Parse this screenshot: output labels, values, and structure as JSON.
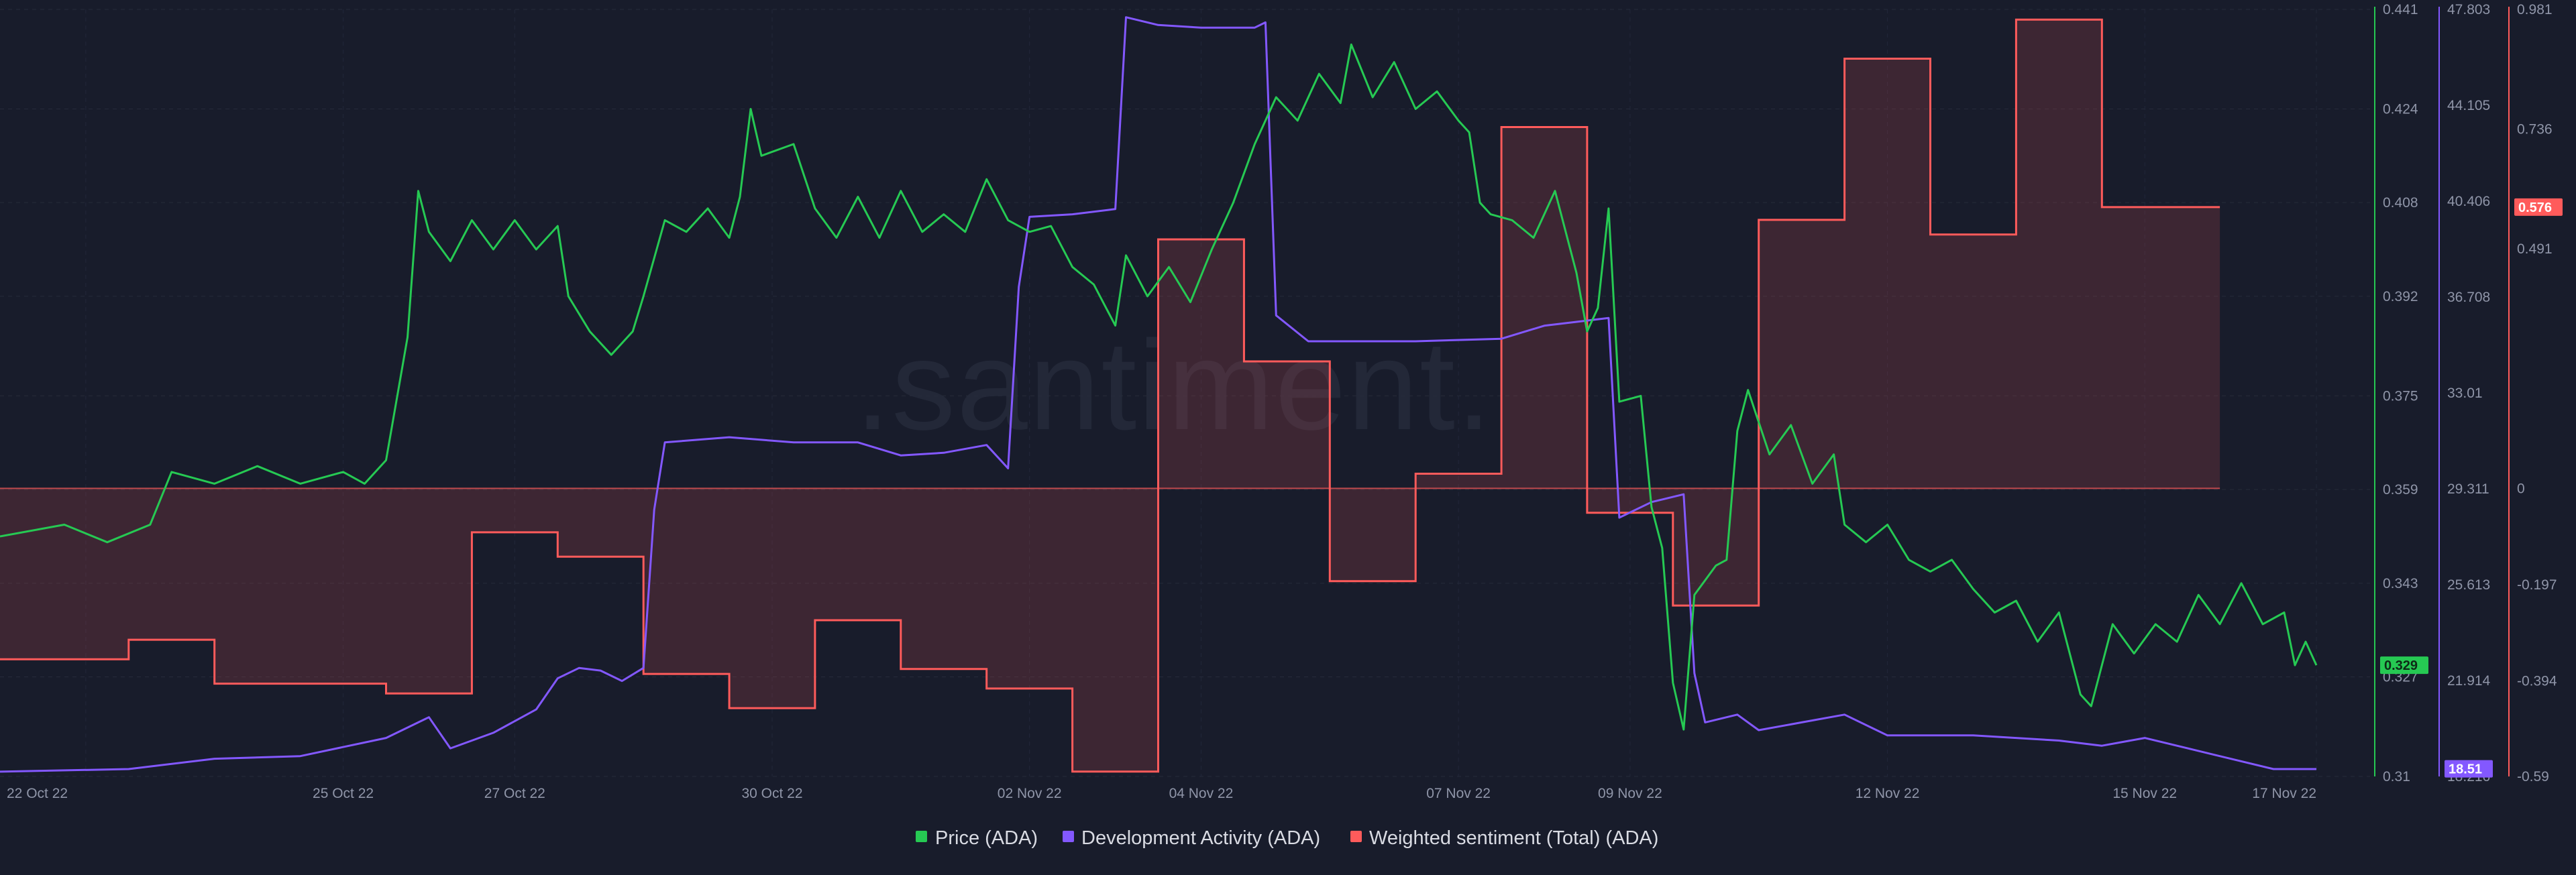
{
  "watermark": ".santiment.",
  "legend": [
    {
      "label": "Price (ADA)",
      "color": "#26c953"
    },
    {
      "label": "Development Activity (ADA)",
      "color": "#8358ff"
    },
    {
      "label": "Weighted sentiment (Total) (ADA)",
      "color": "#ff5b5b"
    }
  ],
  "chart_data": {
    "type": "line",
    "x_range": [
      "2022-10-21",
      "2022-11-17"
    ],
    "x_tick_labels": [
      "22 Oct 22",
      "25 Oct 22",
      "27 Oct 22",
      "30 Oct 22",
      "02 Nov 22",
      "04 Nov 22",
      "07 Nov 22",
      "09 Nov 22",
      "12 Nov 22",
      "15 Nov 22",
      "17 Nov 22"
    ],
    "x_tick_dates": [
      "2022-10-22",
      "2022-10-25",
      "2022-10-27",
      "2022-10-30",
      "2022-11-02",
      "2022-11-04",
      "2022-11-07",
      "2022-11-09",
      "2022-11-12",
      "2022-11-15",
      "2022-11-17"
    ],
    "grid": true,
    "legend_position": "bottom-center",
    "axes": [
      {
        "series": "Price (ADA)",
        "color": "#26c953",
        "range": [
          0.31,
          0.441
        ],
        "ticks": [
          "0.441",
          "0.424",
          "0.408",
          "0.392",
          "0.375",
          "0.359",
          "0.343",
          "0.327",
          "0.31"
        ],
        "current_value_label": "0.329"
      },
      {
        "series": "Development Activity (ADA)",
        "color": "#8358ff",
        "range": [
          18.216,
          47.803
        ],
        "ticks": [
          "47.803",
          "44.105",
          "40.406",
          "36.708",
          "33.01",
          "29.311",
          "25.613",
          "21.914",
          "18.216"
        ],
        "current_value_label": "18.51"
      },
      {
        "series": "Weighted sentiment (Total) (ADA)",
        "color": "#ff5b5b",
        "range": [
          -0.59,
          0.981
        ],
        "ticks": [
          "0.981",
          "0.736",
          "0.491",
          "0",
          "-0.197",
          "-0.394",
          "-0.59"
        ],
        "current_value_label": "0.576"
      }
    ],
    "series": [
      {
        "name": "Price (ADA)",
        "axis": 0,
        "style": "line",
        "points": [
          [
            "2022-10-21 00:00",
            0.351
          ],
          [
            "2022-10-21 18:00",
            0.353
          ],
          [
            "2022-10-22 06:00",
            0.35
          ],
          [
            "2022-10-22 18:00",
            0.353
          ],
          [
            "2022-10-23 00:00",
            0.362
          ],
          [
            "2022-10-23 12:00",
            0.36
          ],
          [
            "2022-10-24 00:00",
            0.363
          ],
          [
            "2022-10-24 12:00",
            0.36
          ],
          [
            "2022-10-25 00:00",
            0.362
          ],
          [
            "2022-10-25 06:00",
            0.36
          ],
          [
            "2022-10-25 12:00",
            0.364
          ],
          [
            "2022-10-25 18:00",
            0.385
          ],
          [
            "2022-10-25 21:00",
            0.41
          ],
          [
            "2022-10-26 00:00",
            0.403
          ],
          [
            "2022-10-26 06:00",
            0.398
          ],
          [
            "2022-10-26 12:00",
            0.405
          ],
          [
            "2022-10-26 18:00",
            0.4
          ],
          [
            "2022-10-27 00:00",
            0.405
          ],
          [
            "2022-10-27 06:00",
            0.4
          ],
          [
            "2022-10-27 12:00",
            0.404
          ],
          [
            "2022-10-27 15:00",
            0.392
          ],
          [
            "2022-10-27 21:00",
            0.386
          ],
          [
            "2022-10-28 03:00",
            0.382
          ],
          [
            "2022-10-28 09:00",
            0.386
          ],
          [
            "2022-10-28 12:00",
            0.392
          ],
          [
            "2022-10-28 18:00",
            0.405
          ],
          [
            "2022-10-29 00:00",
            0.403
          ],
          [
            "2022-10-29 06:00",
            0.407
          ],
          [
            "2022-10-29 12:00",
            0.402
          ],
          [
            "2022-10-29 15:00",
            0.409
          ],
          [
            "2022-10-29 18:00",
            0.424
          ],
          [
            "2022-10-29 21:00",
            0.416
          ],
          [
            "2022-10-30 06:00",
            0.418
          ],
          [
            "2022-10-30 12:00",
            0.407
          ],
          [
            "2022-10-30 18:00",
            0.402
          ],
          [
            "2022-10-31 00:00",
            0.409
          ],
          [
            "2022-10-31 06:00",
            0.402
          ],
          [
            "2022-10-31 12:00",
            0.41
          ],
          [
            "2022-10-31 18:00",
            0.403
          ],
          [
            "2022-11-01 00:00",
            0.406
          ],
          [
            "2022-11-01 06:00",
            0.403
          ],
          [
            "2022-11-01 12:00",
            0.412
          ],
          [
            "2022-11-01 18:00",
            0.405
          ],
          [
            "2022-11-02 00:00",
            0.403
          ],
          [
            "2022-11-02 06:00",
            0.404
          ],
          [
            "2022-11-02 12:00",
            0.397
          ],
          [
            "2022-11-02 18:00",
            0.394
          ],
          [
            "2022-11-03 00:00",
            0.387
          ],
          [
            "2022-11-03 03:00",
            0.399
          ],
          [
            "2022-11-03 09:00",
            0.392
          ],
          [
            "2022-11-03 15:00",
            0.397
          ],
          [
            "2022-11-03 21:00",
            0.391
          ],
          [
            "2022-11-04 03:00",
            0.4
          ],
          [
            "2022-11-04 09:00",
            0.408
          ],
          [
            "2022-11-04 15:00",
            0.418
          ],
          [
            "2022-11-04 21:00",
            0.426
          ],
          [
            "2022-11-05 03:00",
            0.422
          ],
          [
            "2022-11-05 09:00",
            0.43
          ],
          [
            "2022-11-05 15:00",
            0.425
          ],
          [
            "2022-11-05 18:00",
            0.435
          ],
          [
            "2022-11-06 00:00",
            0.426
          ],
          [
            "2022-11-06 06:00",
            0.432
          ],
          [
            "2022-11-06 12:00",
            0.424
          ],
          [
            "2022-11-06 18:00",
            0.427
          ],
          [
            "2022-11-07 00:00",
            0.422
          ],
          [
            "2022-11-07 03:00",
            0.42
          ],
          [
            "2022-11-07 06:00",
            0.408
          ],
          [
            "2022-11-07 09:00",
            0.406
          ],
          [
            "2022-11-07 15:00",
            0.405
          ],
          [
            "2022-11-07 21:00",
            0.402
          ],
          [
            "2022-11-08 03:00",
            0.41
          ],
          [
            "2022-11-08 09:00",
            0.396
          ],
          [
            "2022-11-08 12:00",
            0.386
          ],
          [
            "2022-11-08 15:00",
            0.39
          ],
          [
            "2022-11-08 18:00",
            0.407
          ],
          [
            "2022-11-08 21:00",
            0.374
          ],
          [
            "2022-11-09 03:00",
            0.375
          ],
          [
            "2022-11-09 06:00",
            0.356
          ],
          [
            "2022-11-09 09:00",
            0.349
          ],
          [
            "2022-11-09 12:00",
            0.326
          ],
          [
            "2022-11-09 15:00",
            0.318
          ],
          [
            "2022-11-09 18:00",
            0.341
          ],
          [
            "2022-11-10 00:00",
            0.346
          ],
          [
            "2022-11-10 03:00",
            0.347
          ],
          [
            "2022-11-10 06:00",
            0.369
          ],
          [
            "2022-11-10 09:00",
            0.376
          ],
          [
            "2022-11-10 15:00",
            0.365
          ],
          [
            "2022-11-10 21:00",
            0.37
          ],
          [
            "2022-11-11 03:00",
            0.36
          ],
          [
            "2022-11-11 09:00",
            0.365
          ],
          [
            "2022-11-11 12:00",
            0.353
          ],
          [
            "2022-11-11 18:00",
            0.35
          ],
          [
            "2022-11-12 00:00",
            0.353
          ],
          [
            "2022-11-12 06:00",
            0.347
          ],
          [
            "2022-11-12 12:00",
            0.345
          ],
          [
            "2022-11-12 18:00",
            0.347
          ],
          [
            "2022-11-13 00:00",
            0.342
          ],
          [
            "2022-11-13 06:00",
            0.338
          ],
          [
            "2022-11-13 12:00",
            0.34
          ],
          [
            "2022-11-13 18:00",
            0.333
          ],
          [
            "2022-11-14 00:00",
            0.338
          ],
          [
            "2022-11-14 06:00",
            0.324
          ],
          [
            "2022-11-14 09:00",
            0.322
          ],
          [
            "2022-11-14 15:00",
            0.336
          ],
          [
            "2022-11-14 21:00",
            0.331
          ],
          [
            "2022-11-15 03:00",
            0.336
          ],
          [
            "2022-11-15 09:00",
            0.333
          ],
          [
            "2022-11-15 15:00",
            0.341
          ],
          [
            "2022-11-15 21:00",
            0.336
          ],
          [
            "2022-11-16 03:00",
            0.343
          ],
          [
            "2022-11-16 09:00",
            0.336
          ],
          [
            "2022-11-16 15:00",
            0.338
          ],
          [
            "2022-11-16 18:00",
            0.329
          ],
          [
            "2022-11-16 21:00",
            0.333
          ],
          [
            "2022-11-17 00:00",
            0.329
          ]
        ]
      },
      {
        "name": "Development Activity (ADA)",
        "axis": 1,
        "style": "line",
        "points": [
          [
            "2022-10-21 00:00",
            18.4
          ],
          [
            "2022-10-22 12:00",
            18.5
          ],
          [
            "2022-10-23 12:00",
            18.9
          ],
          [
            "2022-10-24 12:00",
            19.0
          ],
          [
            "2022-10-25 12:00",
            19.7
          ],
          [
            "2022-10-26 00:00",
            20.5
          ],
          [
            "2022-10-26 06:00",
            19.3
          ],
          [
            "2022-10-26 18:00",
            19.9
          ],
          [
            "2022-10-27 06:00",
            20.8
          ],
          [
            "2022-10-27 12:00",
            22.0
          ],
          [
            "2022-10-27 18:00",
            22.4
          ],
          [
            "2022-10-28 00:00",
            22.3
          ],
          [
            "2022-10-28 06:00",
            21.9
          ],
          [
            "2022-10-28 12:00",
            22.4
          ],
          [
            "2022-10-28 15:00",
            28.5
          ],
          [
            "2022-10-28 18:00",
            31.1
          ],
          [
            "2022-10-29 12:00",
            31.3
          ],
          [
            "2022-10-30 06:00",
            31.1
          ],
          [
            "2022-10-31 00:00",
            31.1
          ],
          [
            "2022-10-31 12:00",
            30.6
          ],
          [
            "2022-11-01 00:00",
            30.7
          ],
          [
            "2022-11-01 12:00",
            31.0
          ],
          [
            "2022-11-01 18:00",
            30.1
          ],
          [
            "2022-11-01 21:00",
            37.1
          ],
          [
            "2022-11-02 00:00",
            39.8
          ],
          [
            "2022-11-02 12:00",
            39.9
          ],
          [
            "2022-11-03 00:00",
            40.1
          ],
          [
            "2022-11-03 03:00",
            47.5
          ],
          [
            "2022-11-03 12:00",
            47.2
          ],
          [
            "2022-11-04 00:00",
            47.1
          ],
          [
            "2022-11-04 15:00",
            47.1
          ],
          [
            "2022-11-04 18:00",
            47.3
          ],
          [
            "2022-11-04 21:00",
            36.0
          ],
          [
            "2022-11-05 06:00",
            35.0
          ],
          [
            "2022-11-06 12:00",
            35.0
          ],
          [
            "2022-11-07 12:00",
            35.1
          ],
          [
            "2022-11-08 00:00",
            35.6
          ],
          [
            "2022-11-08 12:00",
            35.8
          ],
          [
            "2022-11-08 18:00",
            35.9
          ],
          [
            "2022-11-08 21:00",
            28.2
          ],
          [
            "2022-11-09 06:00",
            28.8
          ],
          [
            "2022-11-09 15:00",
            29.1
          ],
          [
            "2022-11-09 18:00",
            22.2
          ],
          [
            "2022-11-09 21:00",
            20.3
          ],
          [
            "2022-11-10 06:00",
            20.6
          ],
          [
            "2022-11-10 12:00",
            20.0
          ],
          [
            "2022-11-11 00:00",
            20.3
          ],
          [
            "2022-11-11 12:00",
            20.6
          ],
          [
            "2022-11-12 00:00",
            19.8
          ],
          [
            "2022-11-13 00:00",
            19.8
          ],
          [
            "2022-11-14 00:00",
            19.6
          ],
          [
            "2022-11-14 12:00",
            19.4
          ],
          [
            "2022-11-15 00:00",
            19.7
          ],
          [
            "2022-11-15 12:00",
            19.3
          ],
          [
            "2022-11-16 00:00",
            18.9
          ],
          [
            "2022-11-16 12:00",
            18.5
          ],
          [
            "2022-11-17 00:00",
            18.5
          ]
        ]
      },
      {
        "name": "Weighted sentiment (Total) (ADA)",
        "axis": 2,
        "style": "step-area",
        "points": [
          [
            "2022-10-21 00:00",
            -0.35
          ],
          [
            "2022-10-22 12:00",
            -0.31
          ],
          [
            "2022-10-23 12:00",
            -0.4
          ],
          [
            "2022-10-24 12:00",
            -0.4
          ],
          [
            "2022-10-25 12:00",
            -0.42
          ],
          [
            "2022-10-26 12:00",
            -0.09
          ],
          [
            "2022-10-27 12:00",
            -0.14
          ],
          [
            "2022-10-28 12:00",
            -0.38
          ],
          [
            "2022-10-29 12:00",
            -0.45
          ],
          [
            "2022-10-30 12:00",
            -0.27
          ],
          [
            "2022-10-31 12:00",
            -0.37
          ],
          [
            "2022-11-01 12:00",
            -0.41
          ],
          [
            "2022-11-02 12:00",
            -0.58
          ],
          [
            "2022-11-03 12:00",
            0.51
          ],
          [
            "2022-11-04 12:00",
            0.26
          ],
          [
            "2022-11-05 12:00",
            -0.19
          ],
          [
            "2022-11-06 12:00",
            0.03
          ],
          [
            "2022-11-07 12:00",
            0.74
          ],
          [
            "2022-11-08 12:00",
            -0.05
          ],
          [
            "2022-11-09 12:00",
            -0.24
          ],
          [
            "2022-11-10 12:00",
            0.55
          ],
          [
            "2022-11-11 12:00",
            0.88
          ],
          [
            "2022-11-12 12:00",
            0.52
          ],
          [
            "2022-11-13 12:00",
            0.96
          ],
          [
            "2022-11-14 12:00",
            0.576
          ],
          [
            "2022-11-15 12:00",
            0.576
          ]
        ]
      }
    ]
  }
}
